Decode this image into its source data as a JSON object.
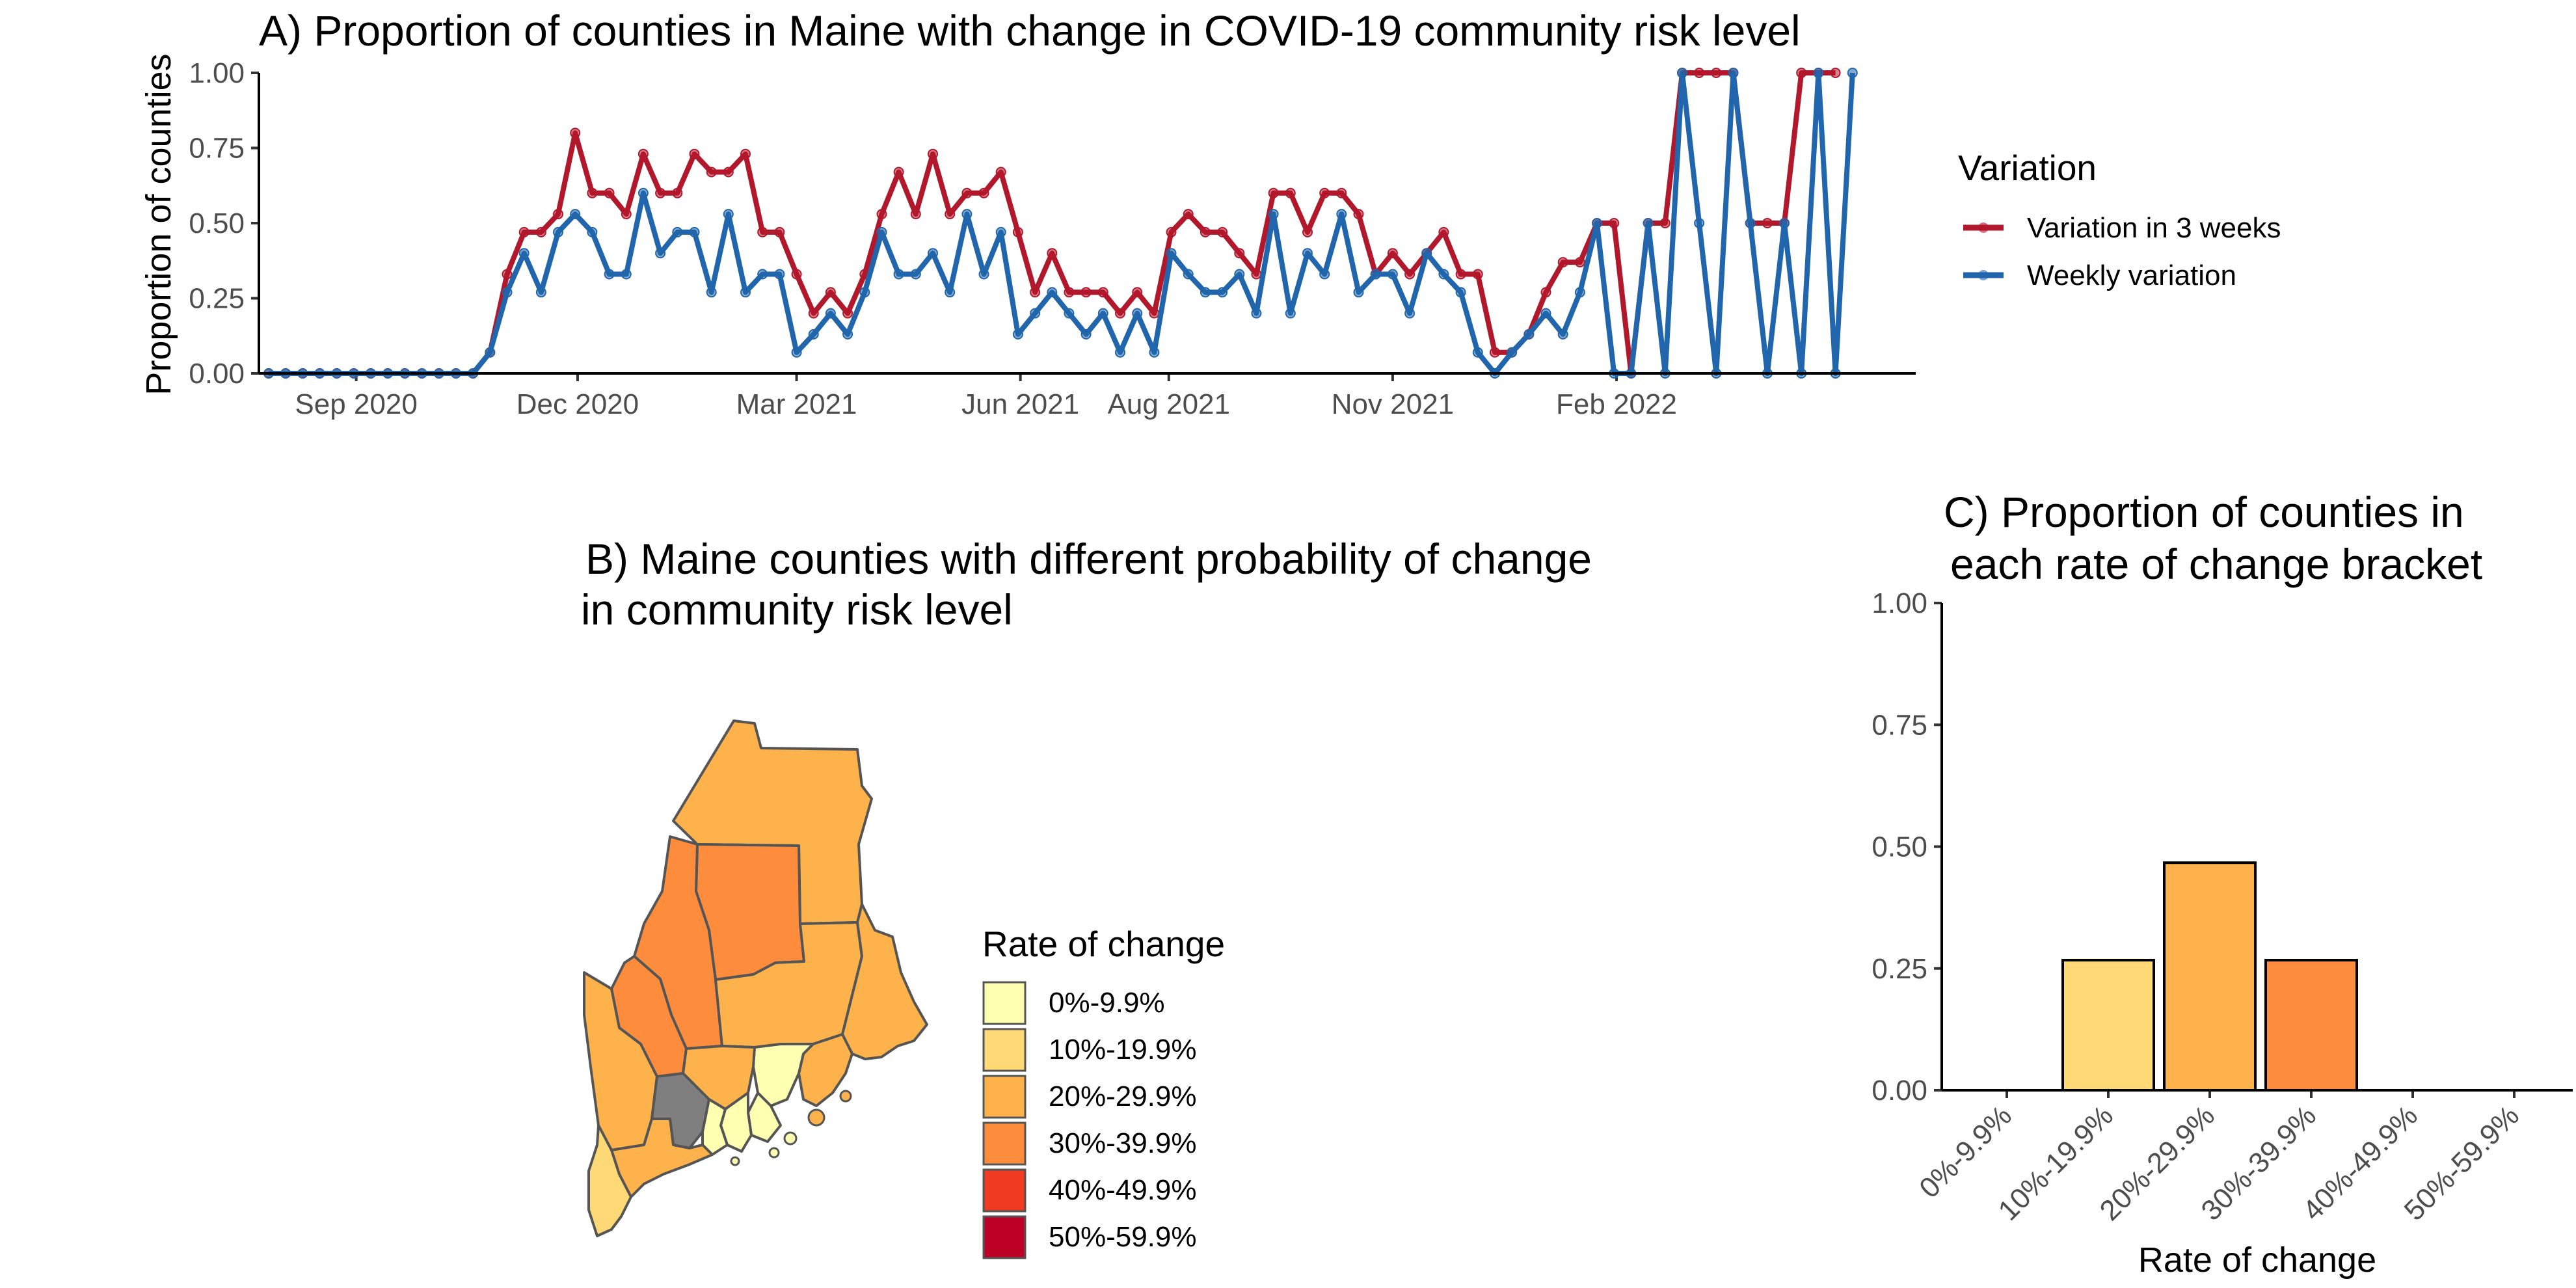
{
  "chart_data": [
    {
      "type": "line",
      "title": "A) Proportion of counties in Maine with change in COVID-19 community risk level",
      "xlabel": "",
      "ylabel": "Proportion of counties",
      "ylim": [
        0,
        1
      ],
      "yticks": [
        "0.00",
        "0.25",
        "0.50",
        "0.75",
        "1.00"
      ],
      "xticks": [
        "Sep 2020",
        "Dec 2020",
        "Mar 2021",
        "Jun 2021",
        "Aug 2021",
        "Nov 2021",
        "Feb 2022"
      ],
      "x_range": [
        "2020-07-23",
        "2022-06-04"
      ],
      "legend": {
        "title": "Variation",
        "position": "right"
      },
      "series": [
        {
          "name": "Variation in 3 weeks",
          "color": "#b2182b",
          "points": [
            [
              "2020-07-27",
              0
            ],
            [
              "2020-08-03",
              0
            ],
            [
              "2020-08-10",
              0
            ],
            [
              "2020-08-17",
              0
            ],
            [
              "2020-08-24",
              0
            ],
            [
              "2020-08-31",
              0
            ],
            [
              "2020-09-07",
              0
            ],
            [
              "2020-09-14",
              0
            ],
            [
              "2020-09-21",
              0
            ],
            [
              "2020-09-28",
              0
            ],
            [
              "2020-10-05",
              0
            ],
            [
              "2020-10-12",
              0
            ],
            [
              "2020-10-19",
              0
            ],
            [
              "2020-10-26",
              0.07
            ],
            [
              "2020-11-02",
              0.33
            ],
            [
              "2020-11-09",
              0.47
            ],
            [
              "2020-11-16",
              0.47
            ],
            [
              "2020-11-23",
              0.53
            ],
            [
              "2020-11-30",
              0.8
            ],
            [
              "2020-12-07",
              0.6
            ],
            [
              "2020-12-14",
              0.6
            ],
            [
              "2020-12-21",
              0.53
            ],
            [
              "2020-12-28",
              0.73
            ],
            [
              "2021-01-04",
              0.6
            ],
            [
              "2021-01-11",
              0.6
            ],
            [
              "2021-01-18",
              0.73
            ],
            [
              "2021-01-25",
              0.67
            ],
            [
              "2021-02-01",
              0.67
            ],
            [
              "2021-02-08",
              0.73
            ],
            [
              "2021-02-15",
              0.47
            ],
            [
              "2021-02-22",
              0.47
            ],
            [
              "2021-03-01",
              0.33
            ],
            [
              "2021-03-08",
              0.2
            ],
            [
              "2021-03-15",
              0.27
            ],
            [
              "2021-03-22",
              0.2
            ],
            [
              "2021-03-29",
              0.33
            ],
            [
              "2021-04-05",
              0.53
            ],
            [
              "2021-04-12",
              0.67
            ],
            [
              "2021-04-19",
              0.53
            ],
            [
              "2021-04-26",
              0.73
            ],
            [
              "2021-05-03",
              0.53
            ],
            [
              "2021-05-10",
              0.6
            ],
            [
              "2021-05-17",
              0.6
            ],
            [
              "2021-05-24",
              0.67
            ],
            [
              "2021-05-31",
              0.47
            ],
            [
              "2021-06-07",
              0.27
            ],
            [
              "2021-06-14",
              0.4
            ],
            [
              "2021-06-21",
              0.27
            ],
            [
              "2021-06-28",
              0.27
            ],
            [
              "2021-07-05",
              0.27
            ],
            [
              "2021-07-12",
              0.2
            ],
            [
              "2021-07-19",
              0.27
            ],
            [
              "2021-07-26",
              0.2
            ],
            [
              "2021-08-02",
              0.47
            ],
            [
              "2021-08-09",
              0.53
            ],
            [
              "2021-08-16",
              0.47
            ],
            [
              "2021-08-23",
              0.47
            ],
            [
              "2021-08-30",
              0.4
            ],
            [
              "2021-09-06",
              0.33
            ],
            [
              "2021-09-13",
              0.6
            ],
            [
              "2021-09-20",
              0.6
            ],
            [
              "2021-09-27",
              0.47
            ],
            [
              "2021-10-04",
              0.6
            ],
            [
              "2021-10-11",
              0.6
            ],
            [
              "2021-10-18",
              0.53
            ],
            [
              "2021-10-25",
              0.33
            ],
            [
              "2021-11-01",
              0.4
            ],
            [
              "2021-11-08",
              0.33
            ],
            [
              "2021-11-15",
              0.4
            ],
            [
              "2021-11-22",
              0.47
            ],
            [
              "2021-11-29",
              0.33
            ],
            [
              "2021-12-06",
              0.33
            ],
            [
              "2021-12-13",
              0.07
            ],
            [
              "2021-12-20",
              0.07
            ],
            [
              "2021-12-27",
              0.13
            ],
            [
              "2022-01-03",
              0.27
            ],
            [
              "2022-01-10",
              0.37
            ],
            [
              "2022-01-17",
              0.37
            ],
            [
              "2022-01-24",
              0.5
            ],
            [
              "2022-01-31",
              0.5
            ],
            [
              "2022-02-07",
              0
            ],
            [
              "2022-02-14",
              0.5
            ],
            [
              "2022-02-21",
              0.5
            ],
            [
              "2022-02-28",
              1.0
            ],
            [
              "2022-03-07",
              1.0
            ],
            [
              "2022-03-14",
              1.0
            ],
            [
              "2022-03-21",
              1.0
            ],
            [
              "2022-03-28",
              0.5
            ],
            [
              "2022-04-04",
              0.5
            ],
            [
              "2022-04-11",
              0.5
            ],
            [
              "2022-04-18",
              1.0
            ],
            [
              "2022-04-25",
              1.0
            ],
            [
              "2022-05-02",
              1.0
            ]
          ]
        },
        {
          "name": "Weekly variation",
          "color": "#2166ac",
          "points": [
            [
              "2020-07-27",
              0
            ],
            [
              "2020-08-03",
              0
            ],
            [
              "2020-08-10",
              0
            ],
            [
              "2020-08-17",
              0
            ],
            [
              "2020-08-24",
              0
            ],
            [
              "2020-08-31",
              0
            ],
            [
              "2020-09-07",
              0
            ],
            [
              "2020-09-14",
              0
            ],
            [
              "2020-09-21",
              0
            ],
            [
              "2020-09-28",
              0
            ],
            [
              "2020-10-05",
              0
            ],
            [
              "2020-10-12",
              0
            ],
            [
              "2020-10-19",
              0
            ],
            [
              "2020-10-26",
              0.07
            ],
            [
              "2020-11-02",
              0.27
            ],
            [
              "2020-11-09",
              0.4
            ],
            [
              "2020-11-16",
              0.27
            ],
            [
              "2020-11-23",
              0.47
            ],
            [
              "2020-11-30",
              0.53
            ],
            [
              "2020-12-07",
              0.47
            ],
            [
              "2020-12-14",
              0.33
            ],
            [
              "2020-12-21",
              0.33
            ],
            [
              "2020-12-28",
              0.6
            ],
            [
              "2021-01-04",
              0.4
            ],
            [
              "2021-01-11",
              0.47
            ],
            [
              "2021-01-18",
              0.47
            ],
            [
              "2021-01-25",
              0.27
            ],
            [
              "2021-02-01",
              0.53
            ],
            [
              "2021-02-08",
              0.27
            ],
            [
              "2021-02-15",
              0.33
            ],
            [
              "2021-02-22",
              0.33
            ],
            [
              "2021-03-01",
              0.07
            ],
            [
              "2021-03-08",
              0.13
            ],
            [
              "2021-03-15",
              0.2
            ],
            [
              "2021-03-22",
              0.13
            ],
            [
              "2021-03-29",
              0.27
            ],
            [
              "2021-04-05",
              0.47
            ],
            [
              "2021-04-12",
              0.33
            ],
            [
              "2021-04-19",
              0.33
            ],
            [
              "2021-04-26",
              0.4
            ],
            [
              "2021-05-03",
              0.27
            ],
            [
              "2021-05-10",
              0.53
            ],
            [
              "2021-05-17",
              0.33
            ],
            [
              "2021-05-24",
              0.47
            ],
            [
              "2021-05-31",
              0.13
            ],
            [
              "2021-06-07",
              0.2
            ],
            [
              "2021-06-14",
              0.27
            ],
            [
              "2021-06-21",
              0.2
            ],
            [
              "2021-06-28",
              0.13
            ],
            [
              "2021-07-05",
              0.2
            ],
            [
              "2021-07-12",
              0.07
            ],
            [
              "2021-07-19",
              0.2
            ],
            [
              "2021-07-26",
              0.07
            ],
            [
              "2021-08-02",
              0.4
            ],
            [
              "2021-08-09",
              0.33
            ],
            [
              "2021-08-16",
              0.27
            ],
            [
              "2021-08-23",
              0.27
            ],
            [
              "2021-08-30",
              0.33
            ],
            [
              "2021-09-06",
              0.2
            ],
            [
              "2021-09-13",
              0.53
            ],
            [
              "2021-09-20",
              0.2
            ],
            [
              "2021-09-27",
              0.4
            ],
            [
              "2021-10-04",
              0.33
            ],
            [
              "2021-10-11",
              0.53
            ],
            [
              "2021-10-18",
              0.27
            ],
            [
              "2021-10-25",
              0.33
            ],
            [
              "2021-11-01",
              0.33
            ],
            [
              "2021-11-08",
              0.2
            ],
            [
              "2021-11-15",
              0.4
            ],
            [
              "2021-11-22",
              0.33
            ],
            [
              "2021-11-29",
              0.27
            ],
            [
              "2021-12-06",
              0.07
            ],
            [
              "2021-12-13",
              0
            ],
            [
              "2021-12-20",
              0.07
            ],
            [
              "2021-12-27",
              0.13
            ],
            [
              "2022-01-03",
              0.2
            ],
            [
              "2022-01-10",
              0.13
            ],
            [
              "2022-01-17",
              0.27
            ],
            [
              "2022-01-24",
              0.5
            ],
            [
              "2022-01-31",
              0
            ],
            [
              "2022-02-07",
              0
            ],
            [
              "2022-02-14",
              0.5
            ],
            [
              "2022-02-21",
              0
            ],
            [
              "2022-02-28",
              1.0
            ],
            [
              "2022-03-07",
              0.5
            ],
            [
              "2022-03-14",
              0
            ],
            [
              "2022-03-21",
              1.0
            ],
            [
              "2022-03-28",
              0.5
            ],
            [
              "2022-04-04",
              0
            ],
            [
              "2022-04-11",
              0.5
            ],
            [
              "2022-04-18",
              0
            ],
            [
              "2022-04-25",
              1.0
            ],
            [
              "2022-05-02",
              0
            ],
            [
              "2022-05-09",
              1.0
            ]
          ]
        }
      ]
    },
    {
      "type": "table",
      "title": " B)  Maine counties with different probability of change\nin community risk level",
      "legend": {
        "title": "Rate of change",
        "position": "right",
        "items": [
          {
            "label": "0%-9.9%",
            "color": "#ffffb2"
          },
          {
            "label": "10%-19.9%",
            "color": "#fed976"
          },
          {
            "label": "20%-29.9%",
            "color": "#feb24c"
          },
          {
            "label": "30%-39.9%",
            "color": "#fd8d3c"
          },
          {
            "label": "40%-49.9%",
            "color": "#f03b20"
          },
          {
            "label": "50%-59.9%",
            "color": "#bd0026"
          }
        ]
      },
      "map_colors": {
        "outline": "#555555",
        "missing": "#7f7f7f"
      }
    },
    {
      "type": "bar",
      "title": "C) Proportion of counties in\n each rate of change bracket",
      "xlabel": "Rate of change",
      "ylabel": "",
      "ylim": [
        0,
        1
      ],
      "yticks": [
        "0.00",
        "0.25",
        "0.50",
        "0.75",
        "1.00"
      ],
      "categories": [
        "0%-9.9%",
        "10%-19.9%",
        "20%-29.9%",
        "30%-39.9%",
        "40%-49.9%",
        "50%-59.9%"
      ],
      "values": [
        0,
        0.267,
        0.467,
        0.267,
        0,
        0
      ],
      "colors": [
        "#ffffb2",
        "#fed976",
        "#feb24c",
        "#fd8d3c",
        "#f03b20",
        "#bd0026"
      ]
    }
  ]
}
